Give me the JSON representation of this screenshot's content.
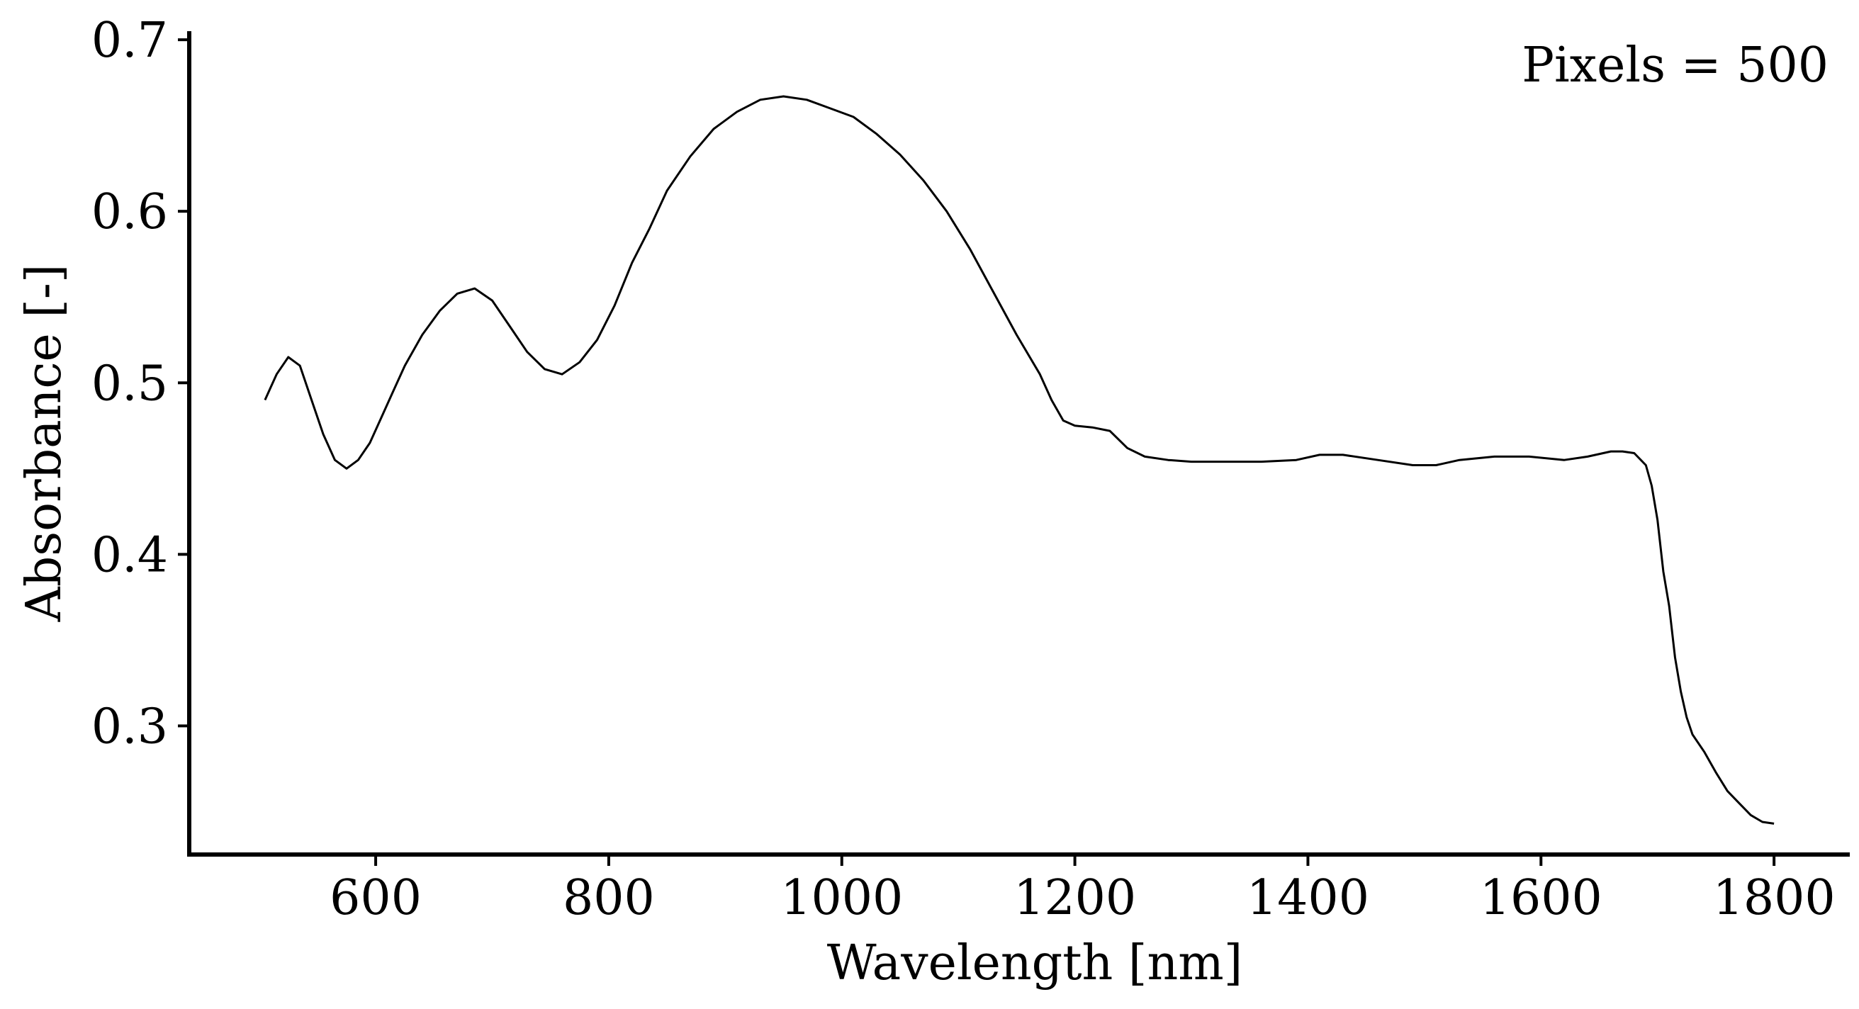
{
  "chart_data": {
    "type": "line",
    "title": "",
    "xlabel": "Wavelength [nm]",
    "ylabel": "Absorbance [-]",
    "annotation": "Pixels = 500",
    "legend": "none",
    "grid": false,
    "xlim": [
      440,
      1865
    ],
    "ylim": [
      0.225,
      0.705
    ],
    "x_ticks": [
      600,
      800,
      1000,
      1200,
      1400,
      1600,
      1800
    ],
    "y_ticks": [
      0.3,
      0.4,
      0.5,
      0.6,
      0.7
    ],
    "x_tick_labels": [
      "600",
      "800",
      "1000",
      "1200",
      "1400",
      "1600",
      "1800"
    ],
    "y_tick_labels": [
      "0.3",
      "0.4",
      "0.5",
      "0.6",
      "0.7"
    ],
    "line_color": "#000000",
    "series": [
      {
        "values_x": [
          505,
          515,
          525,
          535,
          545,
          555,
          565,
          575,
          585,
          595,
          605,
          615,
          625,
          640,
          655,
          670,
          685,
          700,
          715,
          730,
          745,
          760,
          775,
          790,
          805,
          820,
          835,
          850,
          870,
          890,
          910,
          930,
          950,
          970,
          990,
          1010,
          1030,
          1050,
          1070,
          1090,
          1110,
          1130,
          1150,
          1170,
          1180,
          1190,
          1200,
          1215,
          1230,
          1245,
          1260,
          1280,
          1300,
          1330,
          1360,
          1390,
          1410,
          1430,
          1460,
          1490,
          1510,
          1530,
          1560,
          1590,
          1620,
          1640,
          1660,
          1670,
          1680,
          1690,
          1695,
          1700,
          1705,
          1710,
          1715,
          1720,
          1725,
          1730,
          1740,
          1750,
          1760,
          1770,
          1780,
          1790,
          1800
        ],
        "values_y": [
          0.49,
          0.505,
          0.515,
          0.51,
          0.49,
          0.47,
          0.455,
          0.45,
          0.455,
          0.465,
          0.48,
          0.495,
          0.51,
          0.528,
          0.542,
          0.552,
          0.555,
          0.548,
          0.533,
          0.518,
          0.508,
          0.505,
          0.512,
          0.525,
          0.545,
          0.57,
          0.59,
          0.612,
          0.632,
          0.648,
          0.658,
          0.665,
          0.667,
          0.665,
          0.66,
          0.655,
          0.645,
          0.633,
          0.618,
          0.6,
          0.578,
          0.553,
          0.528,
          0.505,
          0.49,
          0.478,
          0.475,
          0.474,
          0.472,
          0.462,
          0.457,
          0.455,
          0.454,
          0.454,
          0.454,
          0.455,
          0.458,
          0.458,
          0.455,
          0.452,
          0.452,
          0.455,
          0.457,
          0.457,
          0.455,
          0.457,
          0.46,
          0.46,
          0.459,
          0.452,
          0.44,
          0.42,
          0.39,
          0.37,
          0.34,
          0.32,
          0.305,
          0.295,
          0.285,
          0.273,
          0.262,
          0.255,
          0.248,
          0.244,
          0.243
        ]
      }
    ]
  }
}
